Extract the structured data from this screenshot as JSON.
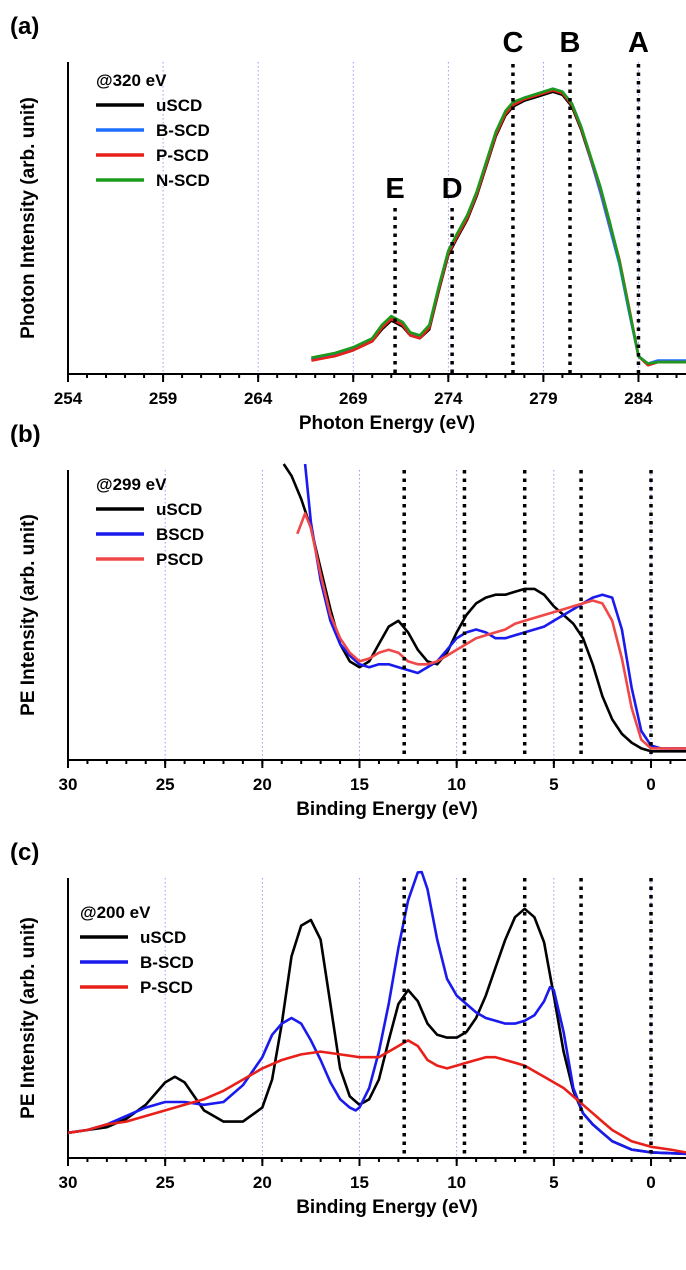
{
  "chart_data": [
    {
      "panel": "(a)",
      "type": "line",
      "xlabel": "Photon Energy (eV)",
      "ylabel": "Photon Intensity (arb. unit)",
      "xlim": [
        254,
        286.5
      ],
      "ylim": [
        0,
        1.05
      ],
      "x_ticks": [
        254,
        259,
        264,
        269,
        274,
        279,
        284
      ],
      "grid": "vertical dotted",
      "legend": {
        "title": "@320 eV",
        "position": "top-left"
      },
      "ref_lines": [
        {
          "label": "E",
          "x": 271.2
        },
        {
          "label": "D",
          "x": 274.2
        },
        {
          "label": "C",
          "x": 277.4
        },
        {
          "label": "B",
          "x": 280.4
        },
        {
          "label": "A",
          "x": 284.0
        }
      ],
      "series": [
        {
          "name": "uSCD",
          "color": "#000000",
          "x": [
            266.8,
            268,
            269,
            270,
            270.5,
            271,
            271.6,
            272,
            272.5,
            273,
            273.5,
            274,
            274.4,
            275,
            275.5,
            276,
            276.5,
            277,
            277.4,
            278,
            278.5,
            279,
            279.5,
            280,
            280.5,
            281,
            281.5,
            282,
            282.5,
            283,
            283.5,
            284,
            284.5,
            285,
            286.5
          ],
          "y": [
            0.05,
            0.06,
            0.08,
            0.11,
            0.15,
            0.18,
            0.16,
            0.13,
            0.12,
            0.15,
            0.28,
            0.4,
            0.45,
            0.52,
            0.6,
            0.7,
            0.8,
            0.87,
            0.9,
            0.92,
            0.93,
            0.94,
            0.95,
            0.94,
            0.9,
            0.82,
            0.72,
            0.62,
            0.5,
            0.38,
            0.22,
            0.06,
            0.03,
            0.04,
            0.04
          ]
        },
        {
          "name": "B-SCD",
          "color": "#1f6fff",
          "x": [
            266.8,
            268,
            269,
            270,
            270.5,
            271,
            271.6,
            272,
            272.5,
            273,
            273.5,
            274,
            274.4,
            275,
            275.5,
            276,
            276.5,
            277,
            277.4,
            278,
            278.5,
            279,
            279.5,
            280,
            280.5,
            281,
            281.5,
            282,
            282.5,
            283,
            283.5,
            284,
            284.5,
            285,
            286.5
          ],
          "y": [
            0.05,
            0.065,
            0.085,
            0.115,
            0.16,
            0.19,
            0.17,
            0.135,
            0.125,
            0.16,
            0.29,
            0.41,
            0.46,
            0.53,
            0.61,
            0.71,
            0.81,
            0.88,
            0.91,
            0.93,
            0.94,
            0.95,
            0.96,
            0.95,
            0.91,
            0.83,
            0.72,
            0.61,
            0.49,
            0.37,
            0.21,
            0.06,
            0.035,
            0.045,
            0.045
          ]
        },
        {
          "name": "P-SCD",
          "color": "#e8201a",
          "x": [
            266.8,
            268,
            269,
            270,
            270.5,
            271,
            271.6,
            272,
            272.5,
            273,
            273.5,
            274,
            274.4,
            275,
            275.5,
            276,
            276.5,
            277,
            277.4,
            278,
            278.5,
            279,
            279.5,
            280,
            280.5,
            281,
            281.5,
            282,
            282.5,
            283,
            283.5,
            284,
            284.5,
            285,
            286.5
          ],
          "y": [
            0.045,
            0.06,
            0.08,
            0.11,
            0.155,
            0.185,
            0.165,
            0.13,
            0.12,
            0.155,
            0.285,
            0.405,
            0.455,
            0.525,
            0.605,
            0.705,
            0.805,
            0.875,
            0.905,
            0.925,
            0.935,
            0.945,
            0.955,
            0.945,
            0.905,
            0.825,
            0.725,
            0.625,
            0.505,
            0.385,
            0.225,
            0.06,
            0.03,
            0.04,
            0.04
          ]
        },
        {
          "name": "N-SCD",
          "color": "#1c9a1c",
          "x": [
            266.8,
            268,
            269,
            270,
            270.5,
            271,
            271.6,
            272,
            272.5,
            273,
            273.5,
            274,
            274.4,
            275,
            275.5,
            276,
            276.5,
            277,
            277.4,
            278,
            278.5,
            279,
            279.5,
            280,
            280.5,
            281,
            281.5,
            282,
            282.5,
            283,
            283.5,
            284,
            284.5,
            285,
            286.5
          ],
          "y": [
            0.055,
            0.07,
            0.09,
            0.12,
            0.165,
            0.195,
            0.175,
            0.14,
            0.13,
            0.165,
            0.295,
            0.415,
            0.465,
            0.535,
            0.615,
            0.715,
            0.815,
            0.885,
            0.915,
            0.93,
            0.94,
            0.95,
            0.96,
            0.95,
            0.91,
            0.83,
            0.73,
            0.63,
            0.51,
            0.38,
            0.22,
            0.06,
            0.035,
            0.04,
            0.04
          ]
        }
      ]
    },
    {
      "panel": "(b)",
      "type": "line",
      "xlabel": "Binding Energy (eV)",
      "ylabel": "PE Intensity (arb. unit)",
      "xlim": [
        30,
        -1.8
      ],
      "x_reversed": true,
      "ylim": [
        0,
        1
      ],
      "x_ticks": [
        30,
        25,
        20,
        15,
        10,
        5,
        0
      ],
      "grid": "vertical dotted",
      "legend": {
        "title": "@299 eV",
        "position": "top-left"
      },
      "ref_lines": [
        {
          "x": 12.7
        },
        {
          "x": 9.6
        },
        {
          "x": 6.5
        },
        {
          "x": 3.6
        },
        {
          "x": 0
        }
      ],
      "series": [
        {
          "name": "uSCD",
          "color": "#000000",
          "x": [
            18.9,
            18.5,
            18,
            17.5,
            17,
            16.5,
            16,
            15.5,
            15,
            14.5,
            14,
            13.5,
            13,
            12.5,
            12,
            11.5,
            11,
            10.5,
            10,
            9.5,
            9,
            8.5,
            8,
            7.5,
            7,
            6.5,
            6,
            5.5,
            5,
            4.5,
            4,
            3.5,
            3,
            2.5,
            2,
            1.5,
            1,
            0.5,
            0,
            -0.5,
            -1,
            -1.8
          ],
          "y": [
            1.05,
            0.98,
            0.9,
            0.8,
            0.66,
            0.52,
            0.4,
            0.34,
            0.32,
            0.34,
            0.4,
            0.46,
            0.48,
            0.44,
            0.38,
            0.34,
            0.33,
            0.37,
            0.44,
            0.5,
            0.54,
            0.56,
            0.57,
            0.57,
            0.58,
            0.59,
            0.59,
            0.57,
            0.53,
            0.5,
            0.47,
            0.42,
            0.33,
            0.22,
            0.14,
            0.09,
            0.06,
            0.04,
            0.03,
            0.03,
            0.03,
            0.03
          ]
        },
        {
          "name": "BSCD",
          "color": "#1a1aee",
          "x": [
            17.8,
            17.5,
            17,
            16.5,
            16,
            15.5,
            15,
            14.5,
            14,
            13.5,
            13,
            12.5,
            12,
            11.5,
            11,
            10.5,
            10,
            9.5,
            9,
            8.5,
            8,
            7.5,
            7,
            6.5,
            6,
            5.5,
            5,
            4.5,
            4,
            3.5,
            3,
            2.5,
            2,
            1.5,
            1,
            0.5,
            0,
            -0.5,
            -1,
            -1.8
          ],
          "y": [
            1.05,
            0.82,
            0.62,
            0.48,
            0.4,
            0.36,
            0.33,
            0.32,
            0.33,
            0.33,
            0.32,
            0.31,
            0.3,
            0.32,
            0.34,
            0.38,
            0.42,
            0.44,
            0.45,
            0.44,
            0.42,
            0.42,
            0.43,
            0.44,
            0.45,
            0.46,
            0.48,
            0.5,
            0.52,
            0.54,
            0.56,
            0.57,
            0.56,
            0.45,
            0.25,
            0.1,
            0.05,
            0.04,
            0.04,
            0.04
          ]
        },
        {
          "name": "PSCD",
          "color": "#f04848",
          "x": [
            18.2,
            17.8,
            17.5,
            17,
            16.5,
            16,
            15.5,
            15,
            14.5,
            14,
            13.5,
            13,
            12.5,
            12,
            11.5,
            11,
            10.5,
            10,
            9.5,
            9,
            8.5,
            8,
            7.5,
            7,
            6.5,
            6,
            5.5,
            5,
            4.5,
            4,
            3.5,
            3,
            2.5,
            2,
            1.5,
            1,
            0.5,
            0,
            -0.5,
            -1,
            -1.8
          ],
          "y": [
            0.78,
            0.85,
            0.8,
            0.64,
            0.5,
            0.42,
            0.37,
            0.34,
            0.35,
            0.37,
            0.38,
            0.37,
            0.34,
            0.33,
            0.33,
            0.34,
            0.36,
            0.38,
            0.4,
            0.42,
            0.43,
            0.44,
            0.45,
            0.47,
            0.48,
            0.49,
            0.5,
            0.51,
            0.52,
            0.53,
            0.54,
            0.55,
            0.54,
            0.48,
            0.35,
            0.18,
            0.07,
            0.04,
            0.04,
            0.04,
            0.04
          ]
        }
      ]
    },
    {
      "panel": "(c)",
      "type": "line",
      "xlabel": "Binding Energy (eV)",
      "ylabel": "PE Intensity (arb. unit)",
      "xlim": [
        30,
        -1.8
      ],
      "x_reversed": true,
      "ylim": [
        0,
        1
      ],
      "x_ticks": [
        30,
        25,
        20,
        15,
        10,
        5,
        0
      ],
      "grid": "vertical dotted",
      "legend": {
        "title": "@200 eV",
        "position": "top-left"
      },
      "ref_lines": [
        {
          "x": 12.7
        },
        {
          "x": 9.6
        },
        {
          "x": 6.5
        },
        {
          "x": 3.6
        },
        {
          "x": 0
        }
      ],
      "series": [
        {
          "name": "uSCD",
          "color": "#000000",
          "x": [
            30,
            29,
            28,
            27,
            26,
            25,
            24.5,
            24,
            23.5,
            23,
            22,
            21,
            20,
            19.5,
            19,
            18.5,
            18,
            17.5,
            17,
            16.5,
            16,
            15.5,
            15,
            14.5,
            14,
            13.5,
            13,
            12.5,
            12,
            11.5,
            11,
            10.5,
            10,
            9.5,
            9,
            8.5,
            8,
            7.5,
            7,
            6.5,
            6,
            5.5,
            5,
            4.5,
            4,
            3.5,
            3,
            2.5,
            2,
            1,
            0,
            -1.8
          ],
          "y": [
            0.09,
            0.1,
            0.11,
            0.14,
            0.19,
            0.27,
            0.29,
            0.27,
            0.22,
            0.17,
            0.13,
            0.13,
            0.18,
            0.28,
            0.48,
            0.72,
            0.83,
            0.85,
            0.78,
            0.55,
            0.32,
            0.22,
            0.19,
            0.21,
            0.28,
            0.42,
            0.55,
            0.6,
            0.56,
            0.48,
            0.44,
            0.43,
            0.43,
            0.45,
            0.5,
            0.58,
            0.68,
            0.78,
            0.86,
            0.89,
            0.86,
            0.77,
            0.58,
            0.38,
            0.24,
            0.16,
            0.12,
            0.09,
            0.06,
            0.03,
            0.02,
            0.015
          ]
        },
        {
          "name": "B-SCD",
          "color": "#1a1aee",
          "x": [
            30,
            29,
            28,
            27,
            26,
            25,
            24,
            23,
            22,
            21,
            20,
            19.5,
            19,
            18.5,
            18,
            17.5,
            17,
            16.5,
            16,
            15.5,
            15.2,
            15,
            14.5,
            14,
            13.5,
            13,
            12.5,
            12,
            11.8,
            11.5,
            11,
            10.5,
            10,
            9.5,
            9,
            8.5,
            8,
            7.5,
            7,
            6.5,
            6,
            5.5,
            5.2,
            5,
            4.5,
            4,
            3.5,
            3,
            2.5,
            2,
            1,
            0,
            -1.8
          ],
          "y": [
            0.09,
            0.1,
            0.12,
            0.15,
            0.18,
            0.2,
            0.2,
            0.19,
            0.2,
            0.26,
            0.36,
            0.44,
            0.48,
            0.5,
            0.48,
            0.42,
            0.35,
            0.27,
            0.21,
            0.18,
            0.17,
            0.18,
            0.25,
            0.38,
            0.55,
            0.75,
            0.92,
            1.02,
            1.03,
            0.96,
            0.78,
            0.64,
            0.58,
            0.55,
            0.52,
            0.5,
            0.49,
            0.48,
            0.48,
            0.49,
            0.51,
            0.56,
            0.61,
            0.6,
            0.45,
            0.25,
            0.16,
            0.12,
            0.09,
            0.06,
            0.03,
            0.02,
            0.015
          ]
        },
        {
          "name": "P-SCD",
          "color": "#e8201a",
          "x": [
            30,
            29,
            28,
            27,
            26,
            25,
            24,
            23,
            22,
            21,
            20,
            19,
            18,
            17,
            16,
            15,
            14,
            13.5,
            13,
            12.5,
            12,
            11.5,
            11,
            10.5,
            10,
            9.5,
            9,
            8.5,
            8,
            7.5,
            7,
            6.5,
            6,
            5.5,
            5,
            4.5,
            4,
            3.5,
            3,
            2.5,
            2,
            1.5,
            1,
            0.5,
            0,
            -1,
            -1.8
          ],
          "y": [
            0.09,
            0.1,
            0.12,
            0.13,
            0.15,
            0.17,
            0.19,
            0.21,
            0.24,
            0.28,
            0.32,
            0.35,
            0.37,
            0.38,
            0.37,
            0.36,
            0.36,
            0.38,
            0.4,
            0.42,
            0.4,
            0.35,
            0.33,
            0.32,
            0.33,
            0.34,
            0.35,
            0.36,
            0.36,
            0.35,
            0.34,
            0.33,
            0.31,
            0.29,
            0.27,
            0.25,
            0.22,
            0.19,
            0.16,
            0.13,
            0.1,
            0.08,
            0.06,
            0.05,
            0.04,
            0.03,
            0.02
          ]
        }
      ]
    }
  ]
}
